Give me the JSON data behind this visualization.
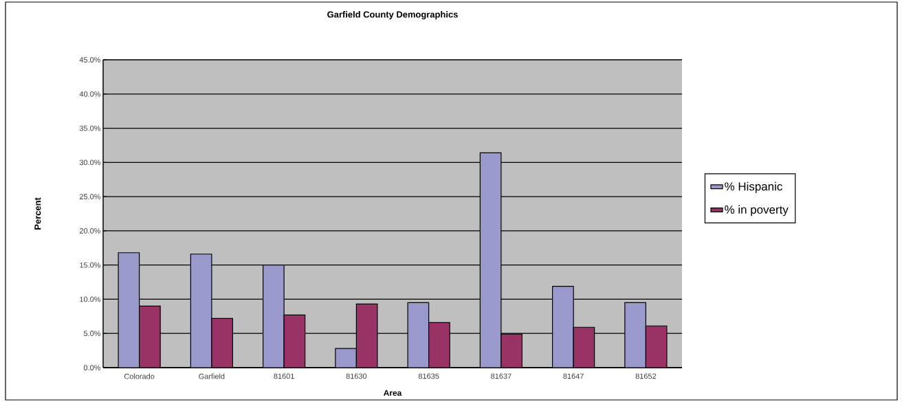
{
  "chart_data": {
    "type": "bar",
    "title": "Garfield County Demographics",
    "xlabel": "Area",
    "ylabel": "Percent",
    "categories": [
      "Colorado",
      "Garfield",
      "81601",
      "81630",
      "81635",
      "81637",
      "81647",
      "81652"
    ],
    "series": [
      {
        "name": "% Hispanic",
        "color": "#9999cc",
        "values": [
          16.8,
          16.6,
          15.0,
          2.8,
          9.5,
          31.4,
          11.9,
          9.5
        ]
      },
      {
        "name": "% in poverty",
        "color": "#993366",
        "values": [
          9.0,
          7.2,
          7.7,
          9.3,
          6.6,
          4.9,
          5.9,
          6.1
        ]
      }
    ],
    "ylim": [
      0,
      45
    ],
    "yticks": [
      {
        "value": 0,
        "label": "0.0%"
      },
      {
        "value": 5,
        "label": "5.0%"
      },
      {
        "value": 10,
        "label": "10.0%"
      },
      {
        "value": 15,
        "label": "15.0%"
      },
      {
        "value": 20,
        "label": "20.0%"
      },
      {
        "value": 25,
        "label": "25.0%"
      },
      {
        "value": 30,
        "label": "30.0%"
      },
      {
        "value": 35,
        "label": "35.0%"
      },
      {
        "value": 40,
        "label": "40.0%"
      },
      {
        "value": 45,
        "label": "45.0%"
      }
    ],
    "grid": "y",
    "legend": "right"
  }
}
